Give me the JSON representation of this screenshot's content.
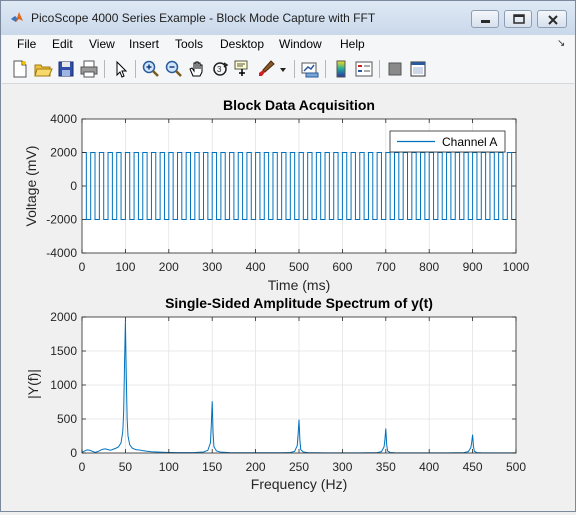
{
  "window": {
    "title": "PicoScope 4000 Series Example - Block Mode Capture with FFT"
  },
  "menu": {
    "items": [
      "File",
      "Edit",
      "View",
      "Insert",
      "Tools",
      "Desktop",
      "Window",
      "Help"
    ]
  },
  "toolbar": {
    "icons": [
      "new-figure-icon",
      "open-file-icon",
      "save-icon",
      "print-icon",
      "select-arrow-icon",
      "zoom-in-icon",
      "zoom-out-icon",
      "pan-hand-icon",
      "rotate-3d-icon",
      "data-cursor-icon",
      "brush-icon",
      "brush-dropdown-icon",
      "link-plot-icon",
      "colorbar-icon",
      "legend-icon",
      "hide-plot-tools-icon",
      "show-plot-tools-icon"
    ]
  },
  "chart_data": [
    {
      "type": "line",
      "title": "Block Data Acquisition",
      "xlabel": "Time (ms)",
      "ylabel": "Voltage (mV)",
      "xlim": [
        0,
        1000
      ],
      "ylim": [
        -4000,
        4000
      ],
      "xticks": [
        0,
        100,
        200,
        300,
        400,
        500,
        600,
        700,
        800,
        900,
        1000
      ],
      "yticks": [
        -4000,
        -2000,
        0,
        2000,
        4000
      ],
      "grid": true,
      "legend_position": "top-right",
      "series": [
        {
          "name": "Channel A",
          "color": "#0072bd",
          "waveform": "square",
          "frequency_hz": 50,
          "high_mv": 2000,
          "low_mv": -2000,
          "start_ms": 0,
          "end_ms": 1000
        }
      ]
    },
    {
      "type": "line",
      "title": "Single-Sided Amplitude Spectrum of y(t)",
      "xlabel": "Frequency (Hz)",
      "ylabel": "|Y(f)|",
      "xlim": [
        0,
        500
      ],
      "ylim": [
        0,
        2000
      ],
      "xticks": [
        0,
        50,
        100,
        150,
        200,
        250,
        300,
        350,
        400,
        450,
        500
      ],
      "yticks": [
        0,
        500,
        1000,
        1500,
        2000
      ],
      "grid": true,
      "series": [
        {
          "color": "#0072bd",
          "x": [
            0,
            3,
            6,
            9,
            12,
            15,
            18,
            21,
            24,
            27,
            30,
            33,
            36,
            39,
            42,
            45,
            47,
            48,
            49,
            50,
            51,
            52,
            53,
            55,
            58,
            62,
            66,
            70,
            75,
            80,
            90,
            100,
            110,
            120,
            130,
            140,
            145,
            148,
            149,
            150,
            151,
            152,
            155,
            160,
            170,
            180,
            190,
            200,
            210,
            220,
            230,
            240,
            245,
            248,
            249,
            250,
            251,
            252,
            255,
            260,
            270,
            280,
            290,
            300,
            310,
            320,
            330,
            340,
            345,
            348,
            349,
            350,
            351,
            352,
            355,
            360,
            370,
            380,
            390,
            400,
            410,
            420,
            430,
            440,
            445,
            448,
            449,
            450,
            451,
            452,
            455,
            460,
            470,
            480,
            490,
            500
          ],
          "y": [
            10,
            30,
            45,
            40,
            25,
            10,
            20,
            40,
            55,
            60,
            50,
            40,
            55,
            70,
            90,
            150,
            320,
            600,
            1300,
            1950,
            1150,
            500,
            250,
            120,
            70,
            50,
            45,
            35,
            25,
            18,
            12,
            8,
            6,
            5,
            8,
            15,
            40,
            150,
            420,
            760,
            300,
            90,
            30,
            12,
            6,
            4,
            3,
            3,
            3,
            3,
            4,
            8,
            25,
            110,
            280,
            490,
            200,
            50,
            15,
            5,
            3,
            2,
            2,
            2,
            2,
            2,
            3,
            6,
            20,
            90,
            200,
            360,
            130,
            30,
            8,
            4,
            2,
            2,
            2,
            2,
            2,
            2,
            3,
            6,
            20,
            80,
            160,
            270,
            100,
            25,
            6,
            3,
            2,
            2,
            2,
            2
          ]
        }
      ]
    }
  ]
}
